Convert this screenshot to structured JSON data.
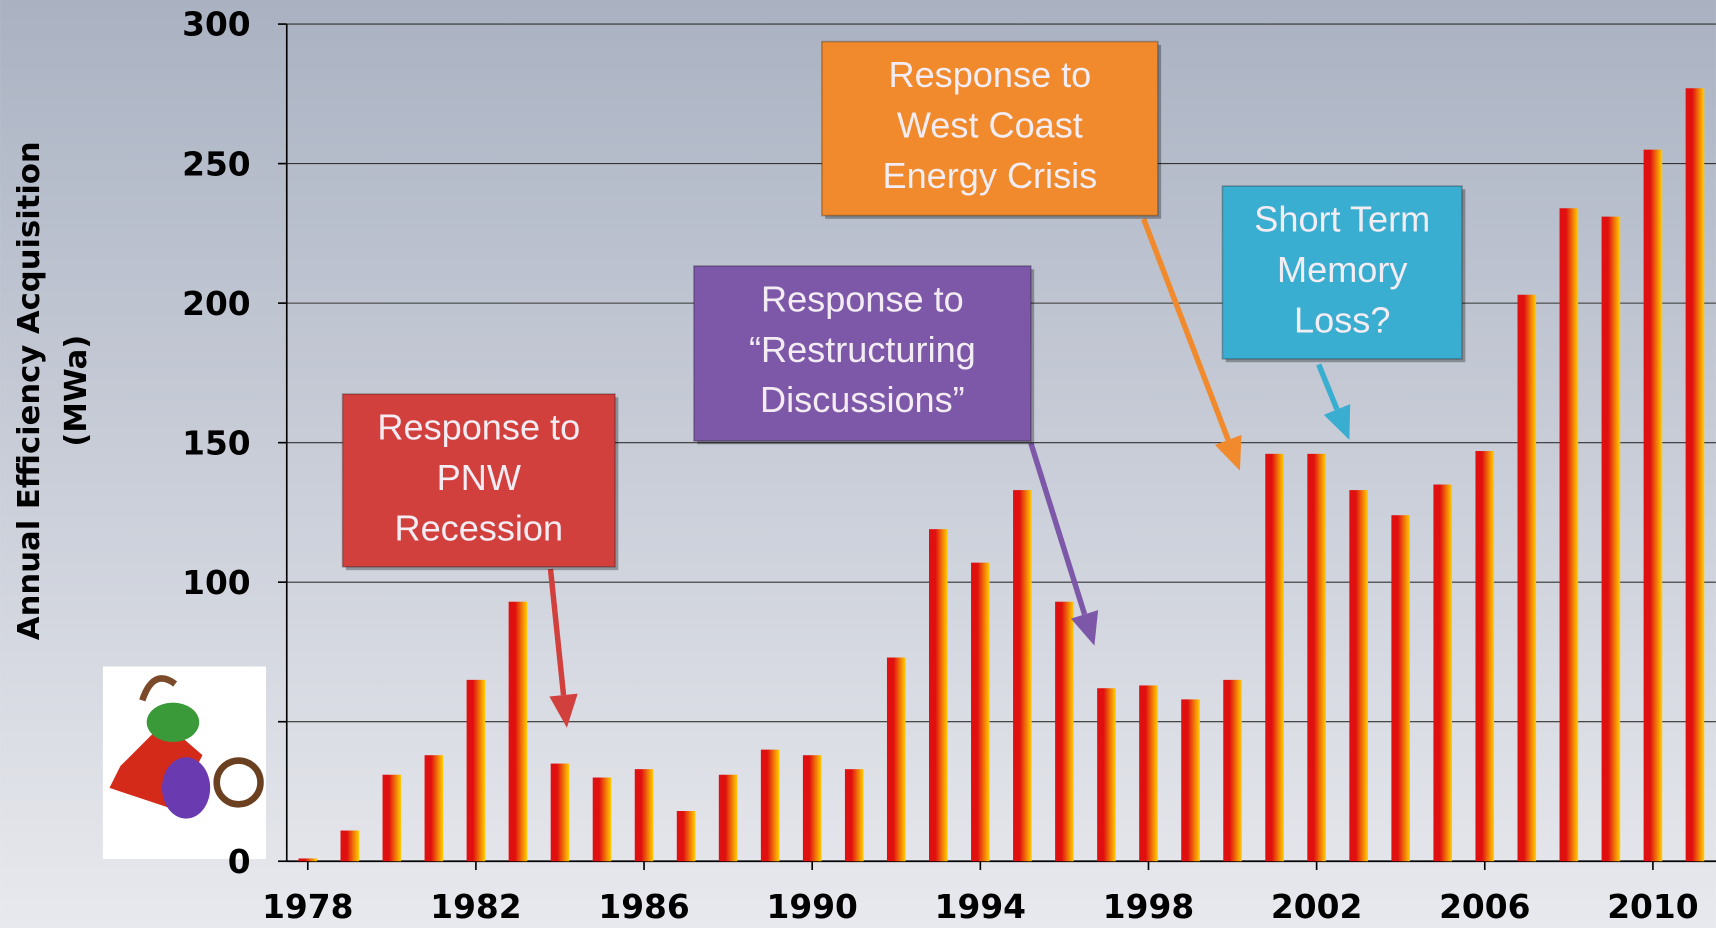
{
  "chart_data": {
    "type": "bar",
    "ylabel": [
      "Annual Efficiency Acquisition",
      "(MWa)"
    ],
    "x": [
      1978,
      1979,
      1980,
      1981,
      1982,
      1983,
      1984,
      1985,
      1986,
      1987,
      1988,
      1989,
      1990,
      1991,
      1992,
      1993,
      1994,
      1995,
      1996,
      1997,
      1998,
      1999,
      2000,
      2001,
      2002,
      2003,
      2004,
      2005,
      2006,
      2007,
      2008,
      2009,
      2010,
      2011
    ],
    "values": [
      1,
      11,
      31,
      38,
      65,
      93,
      35,
      30,
      33,
      18,
      31,
      40,
      38,
      33,
      73,
      119,
      107,
      133,
      93,
      62,
      63,
      58,
      65,
      146,
      146,
      133,
      124,
      135,
      147,
      203,
      234,
      231,
      255,
      277
    ],
    "colors": [
      "#e01010",
      "#ffd000"
    ],
    "xlim": [
      1977.5,
      2011.5
    ],
    "xticks": [
      1978,
      1982,
      1986,
      1990,
      1994,
      1998,
      2002,
      2006,
      2010
    ],
    "ylim": [
      0,
      300
    ],
    "yticks": [
      0,
      {
        "value": 50,
        "label": null
      },
      100,
      150,
      200,
      250,
      300
    ],
    "grid": true,
    "annotations": [
      {
        "lines": [
          "Response to",
          "PNW",
          "Recession"
        ],
        "color": "#d2403e"
      },
      {
        "lines": [
          "Response to",
          "“Restructuring",
          "Discussions”"
        ],
        "color": "#7e58a8"
      },
      {
        "lines": [
          "Response to",
          "West Coast",
          "Energy Crisis"
        ],
        "color": "#f08a2c"
      },
      {
        "lines": [
          "Short Term",
          "Memory",
          "Loss?"
        ],
        "color": "#3aaed0"
      }
    ]
  }
}
